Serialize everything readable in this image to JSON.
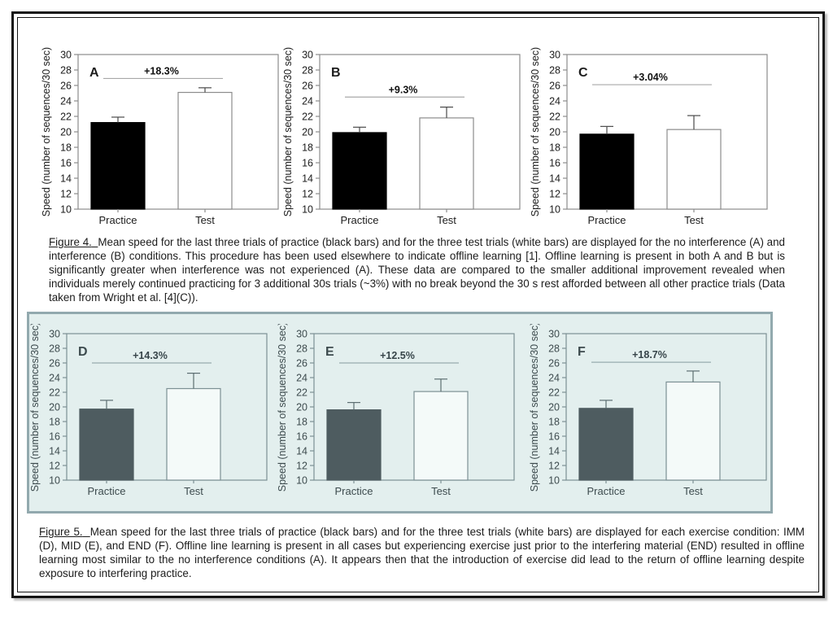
{
  "colors": {
    "highlight_box_bg": "#e3efee",
    "highlight_box_border": "#92a9ae",
    "figure4_practice_bar": "#000000",
    "figure5_practice_bar": "#4e5c60",
    "test_bar": "#ffffff"
  },
  "figure4": {
    "label": "Figure 4.",
    "text": "Mean speed for the last three trials of practice (black bars) and for the three test trials (white bars) are displayed for the no interference (A) and interference (B) conditions.  This procedure has been used elsewhere to indicate offline learning [1].  Offline learning is present in both A and B but is significantly greater when interference was not experienced (A).  These data are compared to the smaller additional improvement revealed when individuals merely  continued practicing for 3 additional 30s trials (~3%) with no break beyond the 30 s rest afforded between all other practice trials (Data taken from Wright et al. [4](C))."
  },
  "figure5": {
    "label": "Figure 5.",
    "text": "Mean speed for the last three trials of practice (black bars) and for the three test trials (white bars) are displayed for each exercise condition: IMM (D), MID (E), and END (F). Offline line learning is present in all cases but experiencing exercise just prior to the interfering material (END) resulted in offline learning most similar to the no interference conditions (A).  It appears then that the introduction of exercise did lead to the return of offline learning despite exposure to interfering practice."
  },
  "chart_data": [
    {
      "type": "bar",
      "panel": "A",
      "categories": [
        "Practice",
        "Test"
      ],
      "values": [
        21.2,
        25.1
      ],
      "errors_plus": [
        0.7,
        0.6
      ],
      "annotation": {
        "text": "+18.3%",
        "y": 26.9
      },
      "ylabel": "Speed (number of sequences/30 sec)",
      "ylim": [
        10,
        30
      ],
      "yticks": [
        10,
        12,
        14,
        16,
        18,
        20,
        22,
        24,
        26,
        28,
        30
      ],
      "bar_fills": [
        "#000000",
        "#ffffff"
      ]
    },
    {
      "type": "bar",
      "panel": "B",
      "categories": [
        "Practice",
        "Test"
      ],
      "values": [
        19.9,
        21.8
      ],
      "errors_plus": [
        0.7,
        1.4
      ],
      "annotation": {
        "text": "+9.3%",
        "y": 24.5
      },
      "ylabel": "Speed (number of sequences/30 sec)",
      "ylim": [
        10,
        30
      ],
      "yticks": [
        10,
        12,
        14,
        16,
        18,
        20,
        22,
        24,
        26,
        28,
        30
      ],
      "bar_fills": [
        "#000000",
        "#ffffff"
      ]
    },
    {
      "type": "bar",
      "panel": "C",
      "categories": [
        "Practice",
        "Test"
      ],
      "values": [
        19.7,
        20.3
      ],
      "errors_plus": [
        1.0,
        1.8
      ],
      "annotation": {
        "text": "+3.04%",
        "y": 26.1
      },
      "ylabel": "Speed (number of sequences/30 sec)",
      "ylim": [
        10,
        30
      ],
      "yticks": [
        10,
        12,
        14,
        16,
        18,
        20,
        22,
        24,
        26,
        28,
        30
      ],
      "bar_fills": [
        "#000000",
        "#ffffff"
      ]
    },
    {
      "type": "bar",
      "panel": "D",
      "categories": [
        "Practice",
        "Test"
      ],
      "values": [
        19.7,
        22.5
      ],
      "errors_plus": [
        1.2,
        2.1
      ],
      "annotation": {
        "text": "+14.3%",
        "y": 26.0
      },
      "ylabel": "Speed (number of sequences/30 sec)",
      "ylim": [
        10,
        30
      ],
      "yticks": [
        10,
        12,
        14,
        16,
        18,
        20,
        22,
        24,
        26,
        28,
        30
      ],
      "bar_fills": [
        "#4e5c60",
        "#f4faf9"
      ]
    },
    {
      "type": "bar",
      "panel": "E",
      "categories": [
        "Practice",
        "Test"
      ],
      "values": [
        19.6,
        22.1
      ],
      "errors_plus": [
        1.0,
        1.7
      ],
      "annotation": {
        "text": "+12.5%",
        "y": 26.0
      },
      "ylabel": "Speed (number of sequences/30 sec)",
      "ylim": [
        10,
        30
      ],
      "yticks": [
        10,
        12,
        14,
        16,
        18,
        20,
        22,
        24,
        26,
        28,
        30
      ],
      "bar_fills": [
        "#4e5c60",
        "#f4faf9"
      ]
    },
    {
      "type": "bar",
      "panel": "F",
      "categories": [
        "Practice",
        "Test"
      ],
      "values": [
        19.8,
        23.4
      ],
      "errors_plus": [
        1.1,
        1.5
      ],
      "annotation": {
        "text": "+18.7%",
        "y": 26.1
      },
      "ylabel": "Speed (number of sequences/30 sec)",
      "ylim": [
        10,
        30
      ],
      "yticks": [
        10,
        12,
        14,
        16,
        18,
        20,
        22,
        24,
        26,
        28,
        30
      ],
      "bar_fills": [
        "#4e5c60",
        "#f4faf9"
      ]
    }
  ]
}
